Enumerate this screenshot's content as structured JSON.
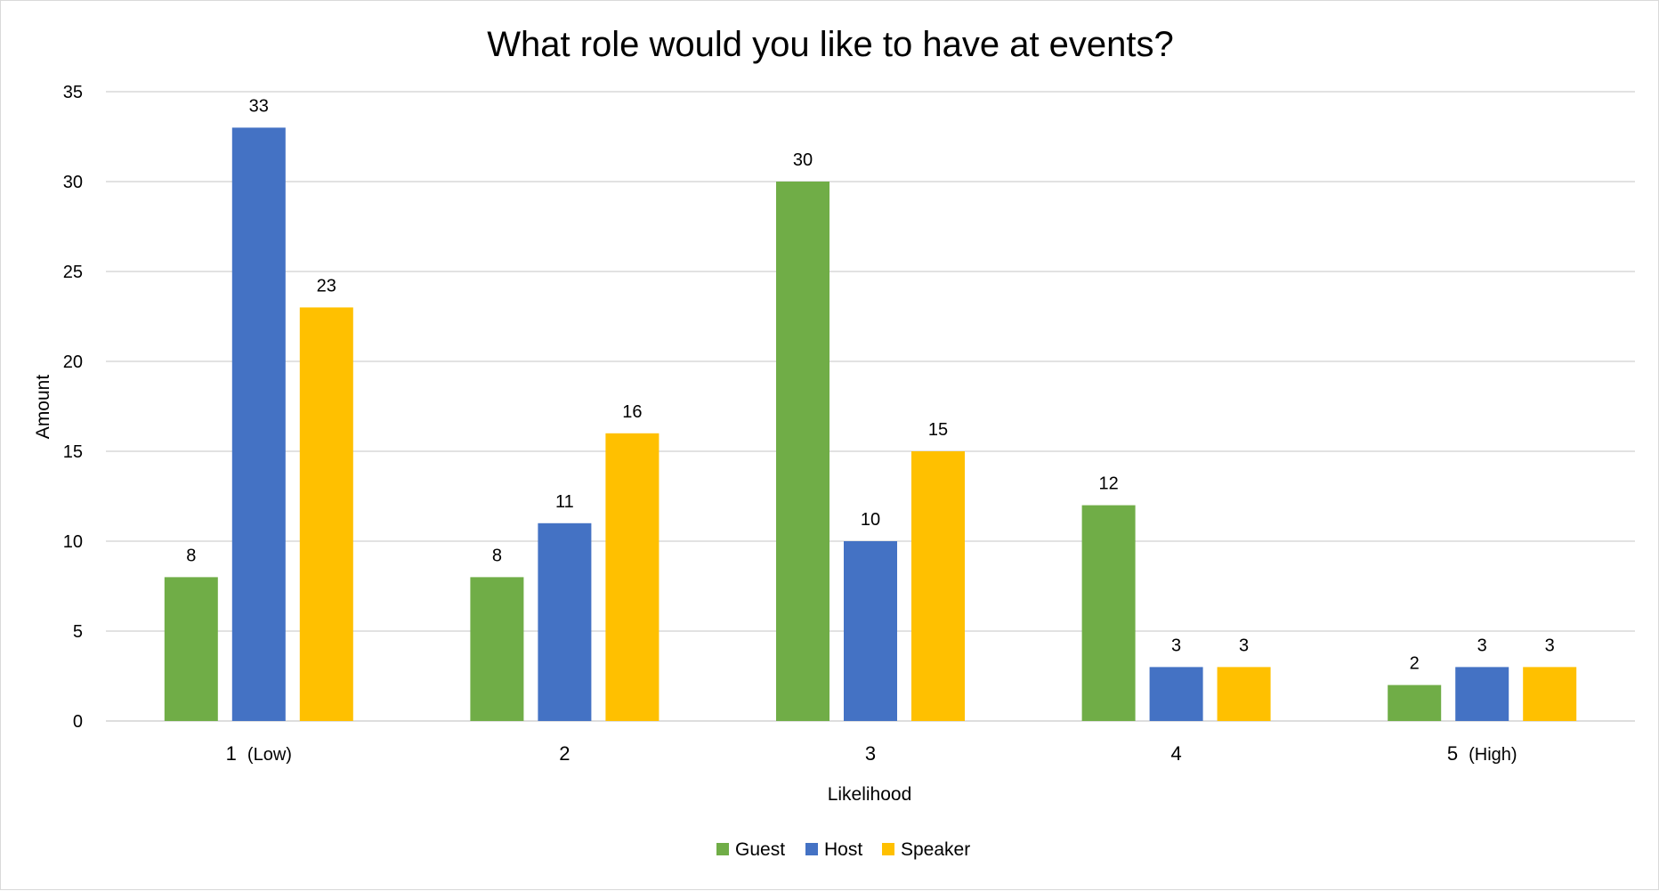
{
  "chart_data": {
    "type": "bar",
    "title": "What role would you like to have at events?",
    "xlabel": "Likelihood",
    "ylabel": "Amount",
    "categories": [
      "1",
      "2",
      "3",
      "4",
      "5"
    ],
    "category_notes": [
      "(Low)",
      "",
      "",
      "",
      "(High)"
    ],
    "series": [
      {
        "name": "Guest",
        "color": "#70ad47",
        "values": [
          8,
          8,
          30,
          12,
          2
        ]
      },
      {
        "name": "Host",
        "color": "#4472c4",
        "values": [
          33,
          11,
          10,
          3,
          3
        ]
      },
      {
        "name": "Speaker",
        "color": "#ffc000",
        "values": [
          23,
          16,
          15,
          3,
          3
        ]
      }
    ],
    "ylim": [
      0,
      35
    ],
    "yticks": [
      0,
      5,
      10,
      15,
      20,
      25,
      30,
      35
    ],
    "grid": true,
    "legend_position": "bottom",
    "data_labels": true
  }
}
